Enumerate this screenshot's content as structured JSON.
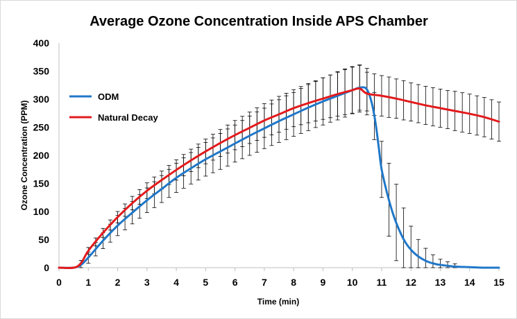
{
  "chart_data": {
    "type": "line",
    "title": "Average Ozone Concentration Inside APS Chamber",
    "xlabel": "Time (min)",
    "ylabel": "Ozone Concentration (PPM)",
    "xlim": [
      0,
      15
    ],
    "ylim": [
      0,
      400
    ],
    "xticks": [
      0,
      1,
      2,
      3,
      4,
      5,
      6,
      7,
      8,
      9,
      10,
      11,
      12,
      13,
      14,
      15
    ],
    "yticks": [
      0,
      50,
      100,
      150,
      200,
      250,
      300,
      350,
      400
    ],
    "grid": false,
    "legend_position": "upper-left",
    "series": [
      {
        "name": "ODM",
        "color": "#1f77c8",
        "x": [
          0,
          0.5,
          0.75,
          1,
          1.5,
          2,
          2.5,
          3,
          3.5,
          4,
          4.5,
          5,
          5.5,
          6,
          6.5,
          7,
          7.5,
          8,
          8.5,
          9,
          9.5,
          10,
          10.2,
          10.4,
          10.5,
          10.6,
          10.7,
          10.8,
          10.9,
          11,
          11.2,
          11.4,
          11.6,
          11.8,
          12,
          12.2,
          12.4,
          12.6,
          12.8,
          13,
          13.5,
          14,
          14.5,
          15
        ],
        "y": [
          0,
          0,
          5,
          18,
          48,
          75,
          98,
          120,
          140,
          160,
          177,
          193,
          207,
          221,
          235,
          248,
          261,
          273,
          285,
          296,
          306,
          316,
          320,
          321,
          317,
          305,
          285,
          255,
          215,
          175,
          130,
          94,
          67,
          46,
          32,
          22,
          15,
          10,
          7,
          5,
          2,
          1,
          0,
          0
        ],
        "error_bars": {
          "x": [
            0.75,
            1,
            1.25,
            1.5,
            1.75,
            2,
            2.25,
            2.5,
            2.75,
            3,
            3.25,
            3.5,
            3.75,
            4,
            4.25,
            4.5,
            4.75,
            5,
            5.25,
            5.5,
            5.75,
            6,
            6.25,
            6.5,
            6.75,
            7,
            7.25,
            7.5,
            7.75,
            8,
            8.25,
            8.5,
            8.75,
            9,
            9.25,
            9.5,
            9.75,
            10,
            10.25,
            10.5,
            10.75,
            11,
            11.25,
            11.5,
            11.75,
            12,
            12.25,
            12.5,
            12.75,
            13,
            13.25,
            13.5
          ],
          "error": [
            8,
            10,
            12,
            14,
            16,
            18,
            19,
            20,
            21,
            22,
            23,
            24,
            25,
            26,
            27,
            28,
            29,
            30,
            31,
            32,
            33,
            33,
            34,
            35,
            36,
            36,
            37,
            38,
            39,
            39,
            40,
            41,
            41,
            42,
            42,
            43,
            43,
            42,
            40,
            38,
            42,
            50,
            65,
            68,
            55,
            42,
            30,
            22,
            15,
            10,
            7,
            5
          ]
        }
      },
      {
        "name": "Natural Decay",
        "color": "#e31a1c",
        "x": [
          0,
          0.5,
          0.75,
          1,
          1.5,
          2,
          2.5,
          3,
          3.5,
          4,
          4.5,
          5,
          5.5,
          6,
          6.5,
          7,
          7.5,
          8,
          8.5,
          9,
          9.5,
          10,
          10.25,
          10.5,
          11,
          11.5,
          12,
          12.5,
          13,
          13.5,
          14,
          14.5,
          15
        ],
        "y": [
          0,
          0,
          8,
          30,
          62,
          90,
          115,
          137,
          156,
          174,
          191,
          207,
          222,
          236,
          249,
          262,
          273,
          284,
          293,
          301,
          309,
          316,
          319,
          310,
          306,
          301,
          295,
          289,
          284,
          279,
          274,
          268,
          260
        ],
        "error_bars": {
          "x": [
            1,
            1.25,
            1.5,
            1.75,
            2,
            2.25,
            2.5,
            2.75,
            3,
            3.25,
            3.5,
            3.75,
            4,
            4.25,
            4.5,
            4.75,
            5,
            5.25,
            5.5,
            5.75,
            6,
            6.25,
            6.5,
            6.75,
            7,
            7.25,
            7.5,
            7.75,
            8,
            8.25,
            8.5,
            8.75,
            9,
            9.25,
            9.5,
            9.75,
            10,
            10.25,
            10.5,
            10.75,
            11,
            11.25,
            11.5,
            11.75,
            12,
            12.25,
            12.5,
            12.75,
            13,
            13.25,
            13.5,
            13.75,
            14,
            14.25,
            14.5,
            14.75,
            15
          ],
          "error": [
            6,
            7,
            8,
            9,
            10,
            11,
            12,
            13,
            14,
            15,
            16,
            17,
            18,
            19,
            20,
            21,
            22,
            23,
            24,
            25,
            26,
            27,
            28,
            29,
            30,
            31,
            32,
            32,
            33,
            34,
            35,
            36,
            37,
            38,
            39,
            40,
            41,
            42,
            38,
            37,
            36,
            36,
            35,
            35,
            34,
            34,
            34,
            34,
            34,
            34,
            35,
            35,
            35,
            35,
            35,
            35,
            35
          ]
        }
      }
    ]
  }
}
